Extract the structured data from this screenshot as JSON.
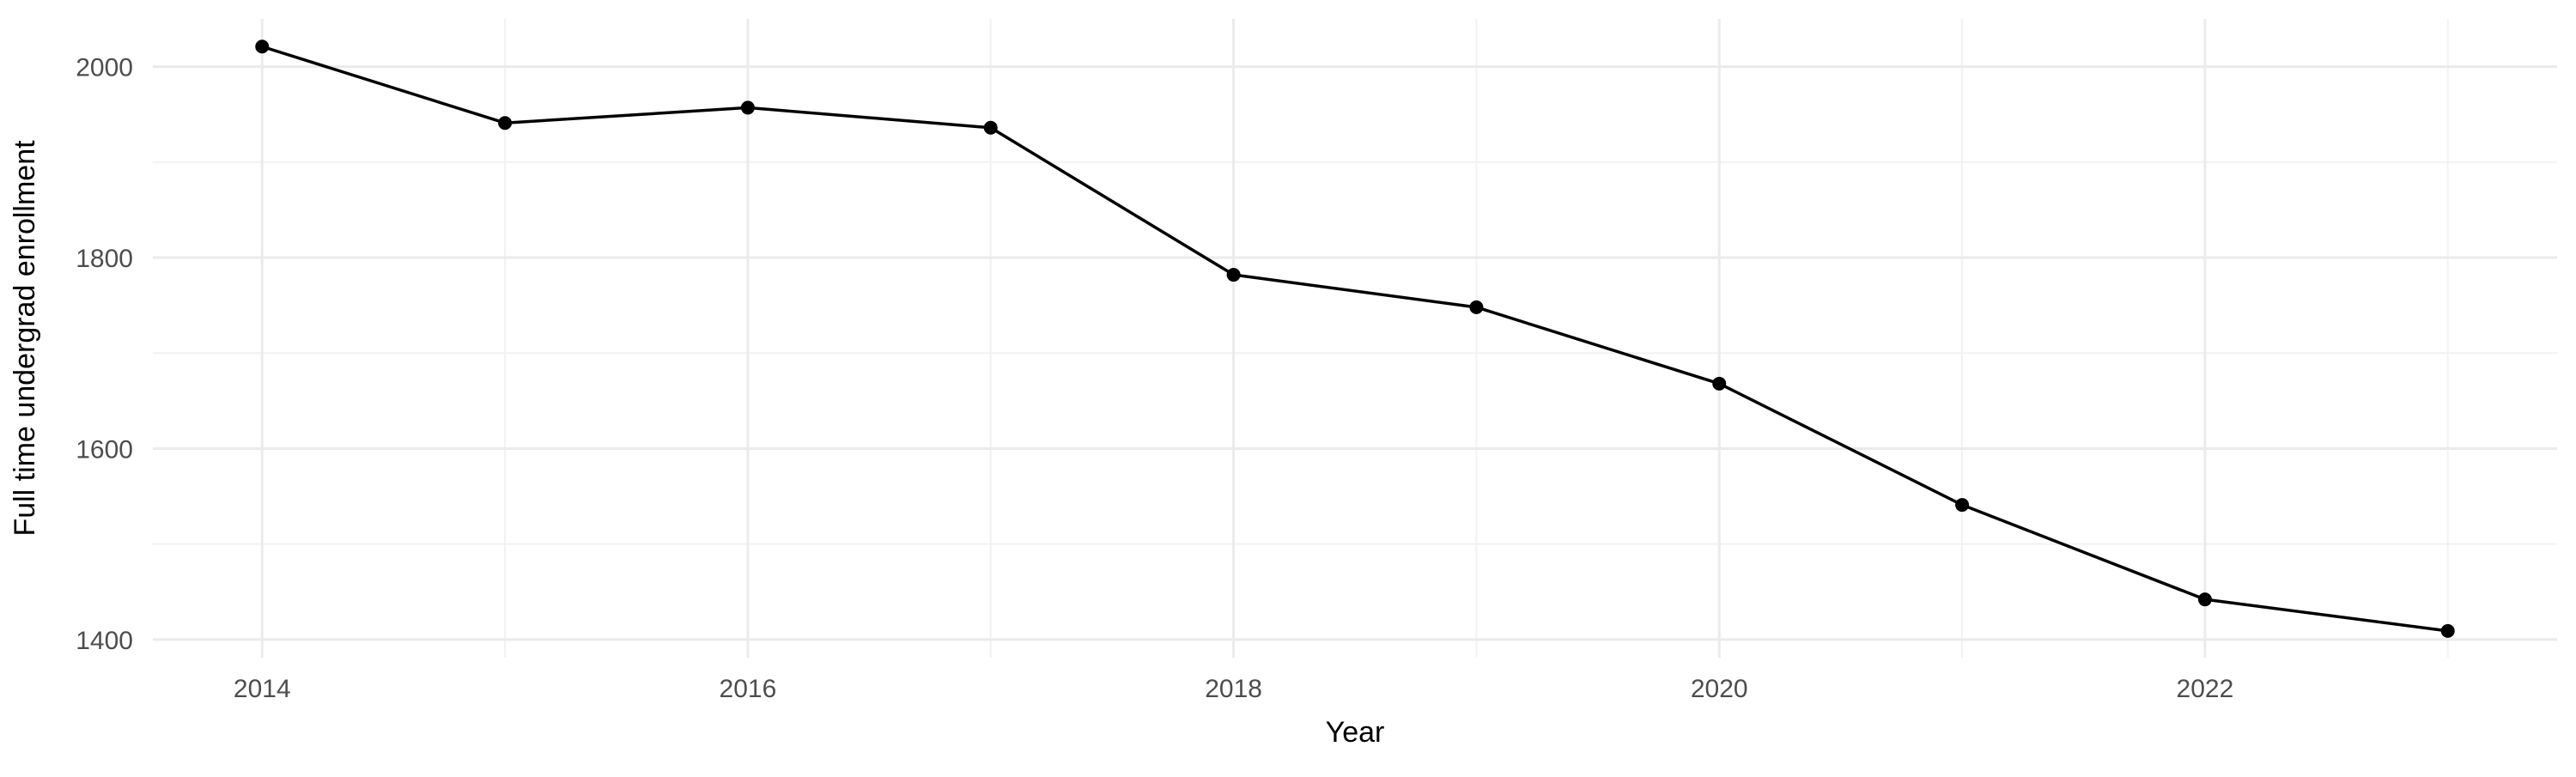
{
  "chart_data": {
    "type": "line",
    "title": "",
    "xlabel": "Year",
    "ylabel": "Full time undergrad enrollment",
    "x": [
      2014,
      2015,
      2016,
      2017,
      2018,
      2019,
      2020,
      2021,
      2022,
      2023
    ],
    "values": [
      2021,
      1941,
      1957,
      1936,
      1782,
      1748,
      1668,
      1541,
      1442,
      1409
    ],
    "series": [
      {
        "name": "Full time undergrad enrollment",
        "values": [
          2021,
          1941,
          1957,
          1936,
          1782,
          1748,
          1668,
          1541,
          1442,
          1409
        ]
      }
    ],
    "xlim": [
      2013.55,
      2023.45
    ],
    "ylim": [
      1381,
      2050
    ],
    "x_major_ticks": [
      2014,
      2016,
      2018,
      2020,
      2022
    ],
    "x_tick_labels": [
      "2014",
      "2016",
      "2018",
      "2020",
      "2022"
    ],
    "x_minor_gridlines": [
      2015,
      2017,
      2019,
      2021,
      2023
    ],
    "y_major_ticks": [
      1400,
      1600,
      1800,
      2000
    ],
    "y_tick_labels": [
      "1400",
      "1600",
      "1800",
      "2000"
    ],
    "y_minor_gridlines": [
      1500,
      1700,
      1900
    ],
    "grid": "on",
    "legend": "none",
    "point_marker": "filled-circle",
    "colors": {
      "line": "#000000",
      "point": "#000000",
      "grid_major": "#EBEBEB",
      "grid_minor": "#F2F2F2",
      "tick_label": "#4D4D4D",
      "axis_title": "#000000",
      "background": "#FFFFFF"
    }
  }
}
